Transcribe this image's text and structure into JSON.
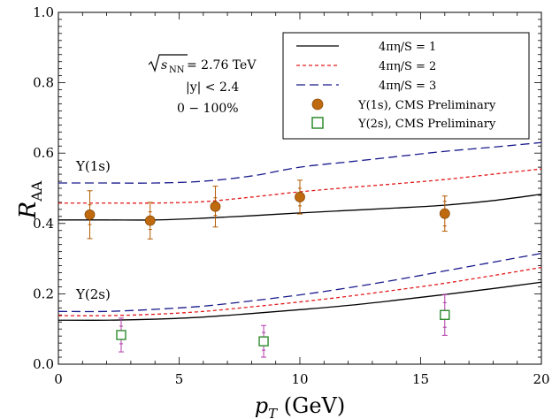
{
  "chart_data": {
    "type": "line",
    "xlabel_main": "p",
    "xlabel_sub": "T",
    "xlabel_unit": " (GeV)",
    "ylabel_main": "R",
    "ylabel_sub": "AA",
    "xlim": [
      0,
      20
    ],
    "ylim": [
      0.0,
      1.0
    ],
    "xticks": [
      0,
      5,
      10,
      15,
      20
    ],
    "yticks": [
      0.0,
      0.2,
      0.4,
      0.6,
      0.8,
      1.0
    ],
    "ytick_labels": [
      "0.0",
      "0.2",
      "0.4",
      "0.6",
      "0.8",
      "1.0"
    ],
    "grid": false,
    "legend_position": "top-right",
    "annotations": {
      "energy_sqrt": "s",
      "energy_sub": "NN",
      "energy_value": " = 2.76 TeV",
      "rapidity": "|y| < 2.4",
      "centrality": "0 − 100%",
      "label_1s": "Υ(1s)",
      "label_2s": "Υ(2s)"
    },
    "series": [
      {
        "name": "4πη/S = 1",
        "style": "solid",
        "color": "#000000",
        "x": [
          0,
          2,
          4,
          6,
          8,
          10,
          12,
          14,
          16,
          18,
          20
        ],
        "y_1s": [
          0.41,
          0.41,
          0.41,
          0.415,
          0.422,
          0.43,
          0.437,
          0.444,
          0.452,
          0.465,
          0.483
        ],
        "y_2s": [
          0.125,
          0.125,
          0.128,
          0.134,
          0.144,
          0.155,
          0.167,
          0.182,
          0.198,
          0.215,
          0.233
        ]
      },
      {
        "name": "4πη/S = 2",
        "style": "dashed-short",
        "color": "#e31a1c",
        "x": [
          0,
          2,
          4,
          6,
          8,
          10,
          12,
          14,
          16,
          18,
          20
        ],
        "y_1s": [
          0.458,
          0.458,
          0.458,
          0.462,
          0.475,
          0.49,
          0.502,
          0.513,
          0.525,
          0.54,
          0.555
        ],
        "y_2s": [
          0.138,
          0.138,
          0.142,
          0.15,
          0.163,
          0.177,
          0.193,
          0.211,
          0.23,
          0.252,
          0.275
        ]
      },
      {
        "name": "4πη/S = 3",
        "style": "dashed-long",
        "color": "#1a1a8c",
        "x": [
          0,
          2,
          4,
          6,
          8,
          10,
          12,
          14,
          16,
          18,
          20
        ],
        "y_1s": [
          0.515,
          0.515,
          0.515,
          0.52,
          0.535,
          0.56,
          0.575,
          0.59,
          0.605,
          0.617,
          0.63
        ],
        "y_2s": [
          0.15,
          0.15,
          0.156,
          0.165,
          0.18,
          0.197,
          0.217,
          0.24,
          0.265,
          0.29,
          0.315
        ]
      }
    ],
    "data_1s": {
      "name": "Υ(1s), CMS Preliminary",
      "color": "#c06a10",
      "edge_color": "#8a4a08",
      "error_color": "#b35a00",
      "points": [
        {
          "x": 1.3,
          "y": 0.425,
          "stat": 0.028,
          "syst": 0.068
        },
        {
          "x": 3.8,
          "y": 0.408,
          "stat": 0.025,
          "syst": 0.052
        },
        {
          "x": 6.5,
          "y": 0.448,
          "stat": 0.025,
          "syst": 0.058
        },
        {
          "x": 10.0,
          "y": 0.475,
          "stat": 0.025,
          "syst": 0.048
        },
        {
          "x": 16.0,
          "y": 0.428,
          "stat": 0.035,
          "syst": 0.05
        }
      ]
    },
    "data_2s": {
      "name": "Υ(2s), CMS Preliminary",
      "color": "#2e8b2e",
      "error_color": "#b03aa8",
      "points": [
        {
          "x": 2.6,
          "y": 0.083,
          "stat": 0.025,
          "syst": 0.048
        },
        {
          "x": 8.5,
          "y": 0.065,
          "stat": 0.025,
          "syst": 0.045
        },
        {
          "x": 16.0,
          "y": 0.14,
          "stat": 0.035,
          "syst": 0.058
        }
      ]
    }
  }
}
